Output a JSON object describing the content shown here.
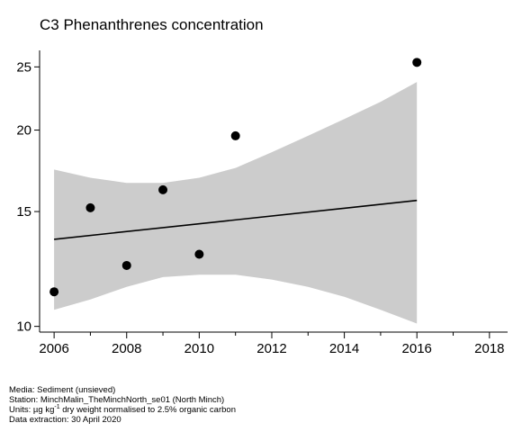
{
  "chart_data": {
    "type": "scatter",
    "title": "C3 Phenanthrenes concentration",
    "xlabel": "",
    "ylabel": "",
    "y_scale": "log",
    "xlim": [
      2005.6,
      2018.5
    ],
    "ylim": [
      9.8,
      26.5
    ],
    "x_ticks": [
      2006,
      2008,
      2010,
      2012,
      2014,
      2016,
      2018
    ],
    "x_minor_ticks": [
      2007,
      2009,
      2011,
      2013,
      2015,
      2017
    ],
    "y_ticks": [
      10,
      15,
      20,
      25
    ],
    "grid": false,
    "points": [
      {
        "x": 2006,
        "y": 11.3
      },
      {
        "x": 2007,
        "y": 15.2
      },
      {
        "x": 2008,
        "y": 12.4
      },
      {
        "x": 2009,
        "y": 16.2
      },
      {
        "x": 2010,
        "y": 12.9
      },
      {
        "x": 2011,
        "y": 19.6
      },
      {
        "x": 2016,
        "y": 25.4
      }
    ],
    "trend": [
      {
        "x": 2006,
        "y": 13.6
      },
      {
        "x": 2016,
        "y": 15.6
      }
    ],
    "band": [
      {
        "x": 2006,
        "lower": 10.6,
        "upper": 17.4
      },
      {
        "x": 2007,
        "lower": 11.0,
        "upper": 16.9
      },
      {
        "x": 2008,
        "lower": 11.5,
        "upper": 16.6
      },
      {
        "x": 2009,
        "lower": 11.9,
        "upper": 16.6
      },
      {
        "x": 2010,
        "lower": 12.0,
        "upper": 16.9
      },
      {
        "x": 2011,
        "lower": 12.0,
        "upper": 17.5
      },
      {
        "x": 2012,
        "lower": 11.8,
        "upper": 18.5
      },
      {
        "x": 2013,
        "lower": 11.5,
        "upper": 19.6
      },
      {
        "x": 2014,
        "lower": 11.1,
        "upper": 20.8
      },
      {
        "x": 2015,
        "lower": 10.6,
        "upper": 22.1
      },
      {
        "x": 2016,
        "lower": 10.1,
        "upper": 23.7
      }
    ],
    "colors": {
      "band": "#cccccc",
      "points": "#000000",
      "trend": "#000000",
      "axes": "#000000"
    }
  },
  "footer": {
    "media": "Media: Sediment (unsieved)",
    "station": "Station: MinchMalin_TheMinchNorth_se01 (North Minch)",
    "units_prefix": "Units:  µg kg",
    "units_sup": "-1",
    "units_suffix": " dry weight normalised to 2.5% organic carbon",
    "extraction": "Data extraction: 30 April 2020"
  }
}
